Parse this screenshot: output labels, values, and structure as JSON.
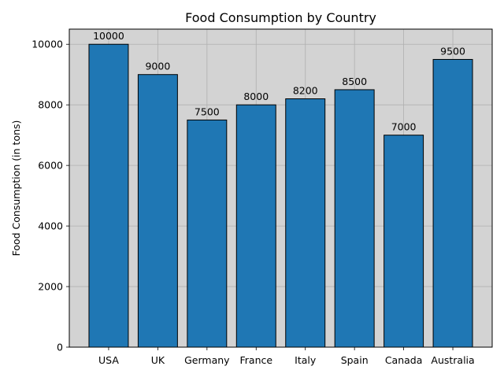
{
  "chart_data": {
    "type": "bar",
    "title": "Food Consumption by Country",
    "xlabel": "",
    "ylabel": "Food Consumption (in tons)",
    "categories": [
      "USA",
      "UK",
      "Germany",
      "France",
      "Italy",
      "Spain",
      "Canada",
      "Australia"
    ],
    "values": [
      10000,
      9000,
      7500,
      8000,
      8200,
      8500,
      7000,
      9500
    ],
    "data_labels": [
      "10000",
      "9000",
      "7500",
      "8000",
      "8200",
      "8500",
      "7000",
      "9500"
    ],
    "ylim": [
      0,
      10500
    ],
    "yticks": [
      0,
      2000,
      4000,
      6000,
      8000,
      10000
    ],
    "ytick_labels": [
      "0",
      "2000",
      "4000",
      "6000",
      "8000",
      "10000"
    ],
    "grid": true,
    "colors": {
      "bar": "#1f77b4",
      "bar_edge": "#000000",
      "plot_background": "#d3d3d3",
      "grid": "#b0b0b0"
    }
  }
}
